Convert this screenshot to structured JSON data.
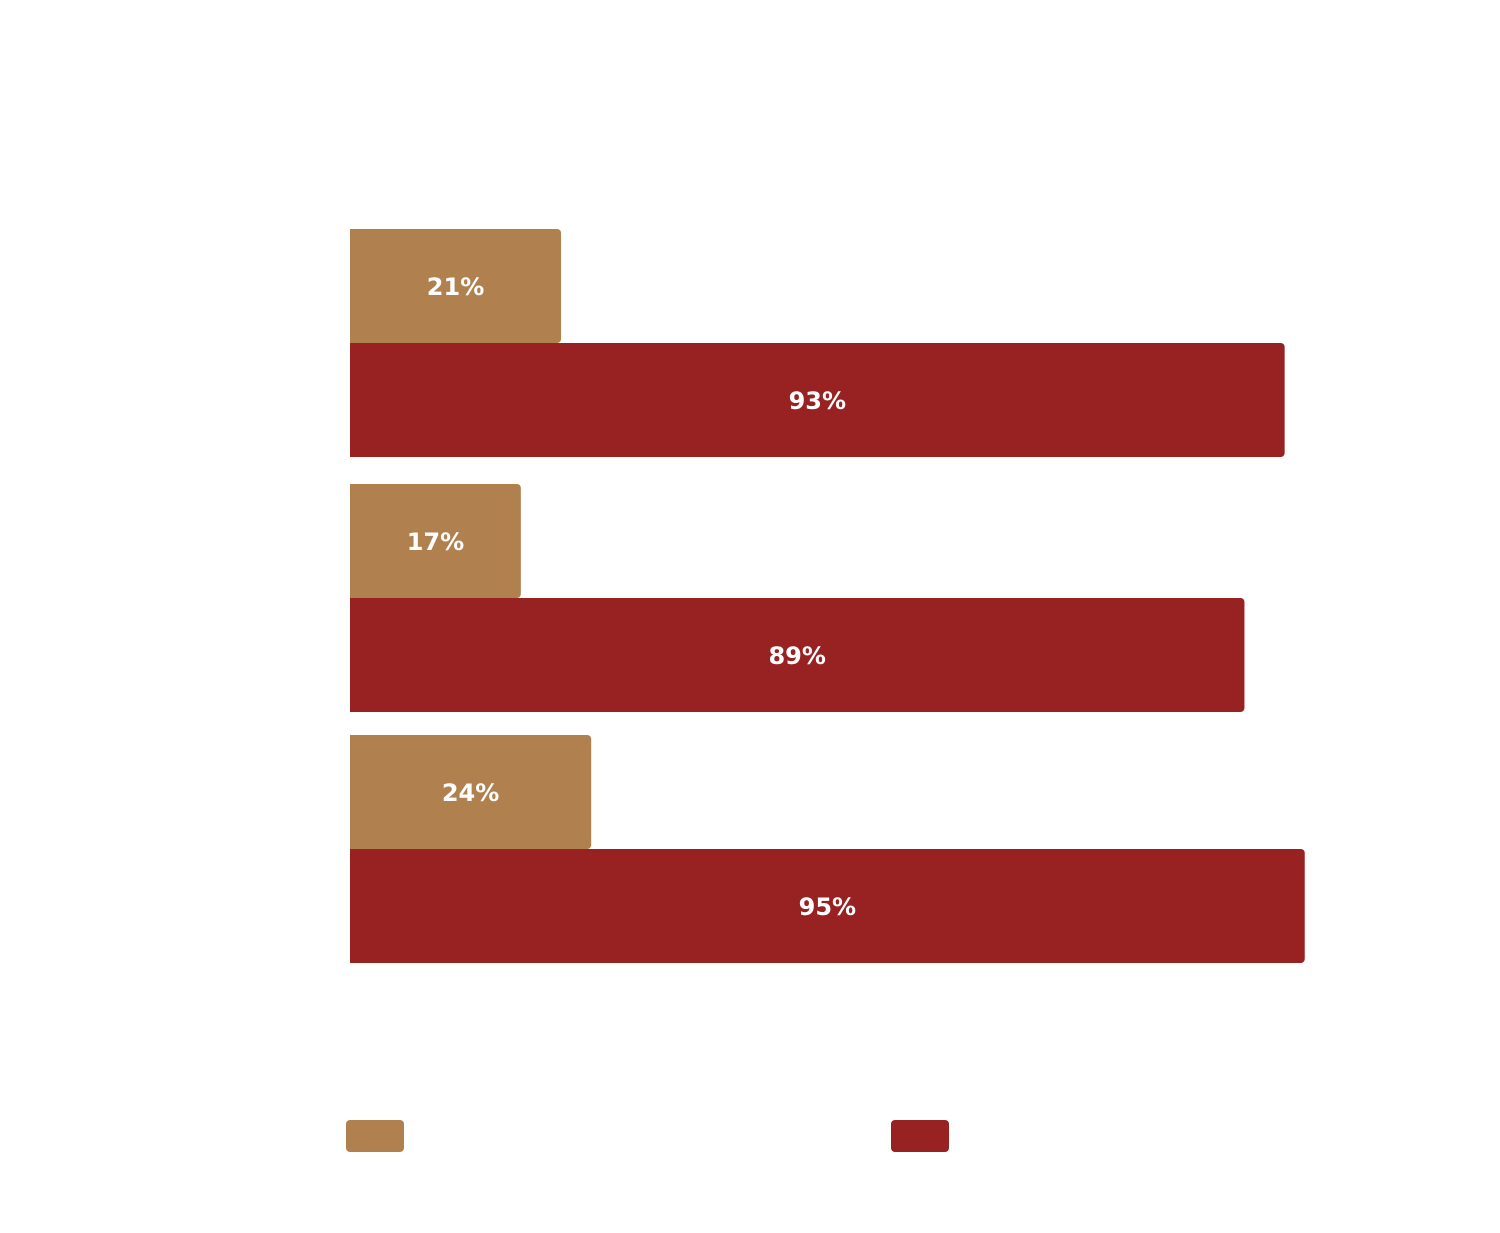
{
  "chart_data": {
    "type": "bar",
    "orientation": "horizontal",
    "categories": [
      null,
      null,
      null
    ],
    "series": [
      {
        "color": "#b0814e",
        "values": [
          21,
          17,
          24
        ],
        "value_labels": [
          "21%",
          "17%",
          "24%"
        ]
      },
      {
        "color": "#982222",
        "values": [
          93,
          89,
          95
        ],
        "value_labels": [
          "93%",
          "89%",
          "95%"
        ]
      }
    ],
    "xlim": [
      0,
      100
    ]
  }
}
